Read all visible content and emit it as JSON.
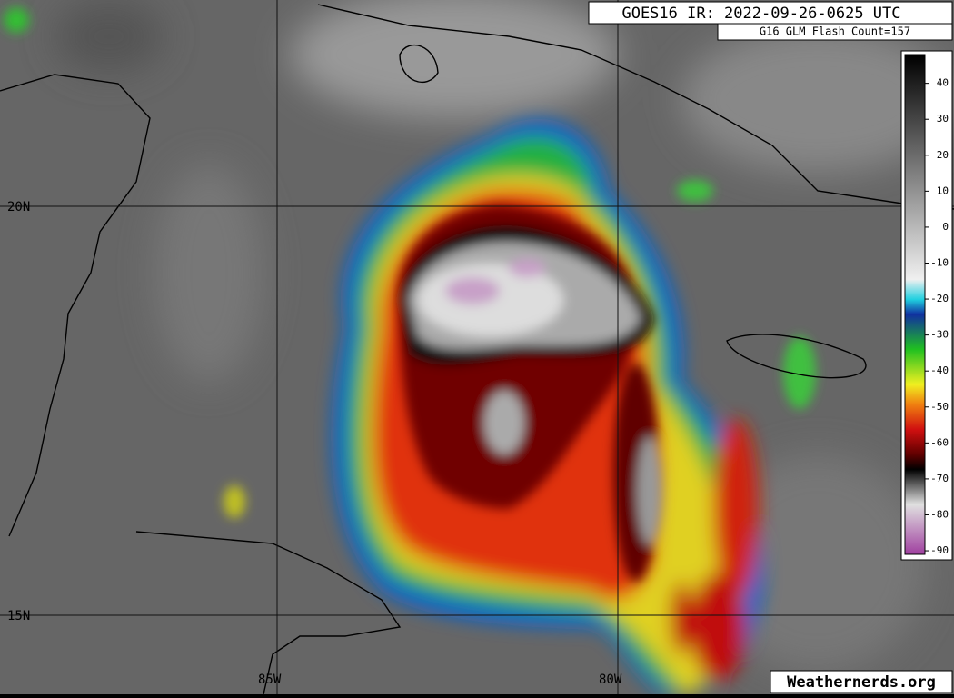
{
  "header": {
    "title": "GOES16 IR: 2022-09-26-0625 UTC",
    "subtitle": "G16 GLM Flash Count=157"
  },
  "map": {
    "lat_labels": [
      "20N",
      "15N"
    ],
    "lon_labels": [
      "85W",
      "80W"
    ]
  },
  "colorbar": {
    "lim": [
      -91,
      48
    ],
    "ticks": [
      40,
      30,
      20,
      10,
      0,
      -10,
      -20,
      -30,
      -40,
      -50,
      -60,
      -70,
      -80,
      -90
    ]
  },
  "footer": {
    "credit": "Weathernerds.org"
  }
}
